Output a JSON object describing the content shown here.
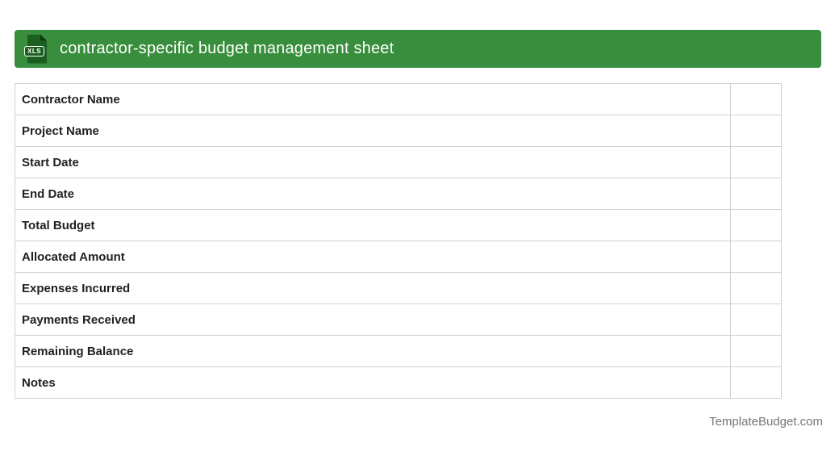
{
  "header": {
    "title": "contractor-specific budget management sheet",
    "icon_label": "XLS"
  },
  "table": {
    "rows": [
      {
        "label": "Contractor Name",
        "value": ""
      },
      {
        "label": "Project Name",
        "value": ""
      },
      {
        "label": "Start Date",
        "value": ""
      },
      {
        "label": "End Date",
        "value": ""
      },
      {
        "label": "Total Budget",
        "value": ""
      },
      {
        "label": "Allocated Amount",
        "value": ""
      },
      {
        "label": "Expenses Incurred",
        "value": ""
      },
      {
        "label": "Payments Received",
        "value": ""
      },
      {
        "label": "Remaining Balance",
        "value": ""
      },
      {
        "label": "Notes",
        "value": ""
      }
    ]
  },
  "footer": {
    "site": "TemplateBudget.com"
  },
  "colors": {
    "header_green": "#388E3C",
    "icon_dark_green": "#1B5E20",
    "icon_fold_green": "#0C3D10",
    "table_border": "#D2D2D2",
    "label_text": "#212121",
    "footer_text": "#757575"
  }
}
